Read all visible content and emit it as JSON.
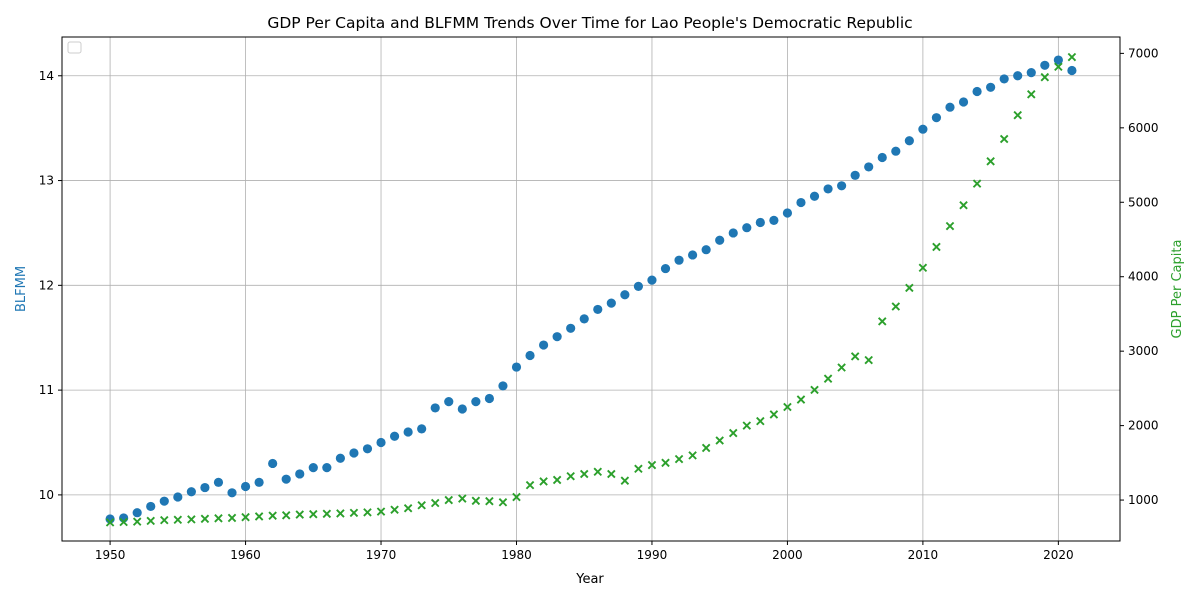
{
  "chart_data": {
    "type": "scatter",
    "title": "GDP Per Capita and BLFMM Trends Over Time for Lao People's Democratic Republic",
    "xlabel": "Year",
    "ylabel_left": "BLFMM",
    "ylabel_right": "GDP Per Capita",
    "xlim": [
      1946.45,
      2024.55
    ],
    "ylim_left": [
      9.56,
      14.37
    ],
    "ylim_right": [
      450,
      7220
    ],
    "x_ticks": [
      1950,
      1960,
      1970,
      1980,
      1990,
      2000,
      2010,
      2020
    ],
    "y_ticks_left": [
      10,
      11,
      12,
      13,
      14
    ],
    "y_ticks_right": [
      1000,
      2000,
      3000,
      4000,
      5000,
      6000,
      7000
    ],
    "grid": true,
    "legend": "top-left (empty)",
    "x": [
      1950,
      1951,
      1952,
      1953,
      1954,
      1955,
      1956,
      1957,
      1958,
      1959,
      1960,
      1961,
      1962,
      1963,
      1964,
      1965,
      1966,
      1967,
      1968,
      1969,
      1970,
      1971,
      1972,
      1973,
      1974,
      1975,
      1976,
      1977,
      1978,
      1979,
      1980,
      1981,
      1982,
      1983,
      1984,
      1985,
      1986,
      1987,
      1988,
      1989,
      1990,
      1991,
      1992,
      1993,
      1994,
      1995,
      1996,
      1997,
      1998,
      1999,
      2000,
      2001,
      2002,
      2003,
      2004,
      2005,
      2006,
      2007,
      2008,
      2009,
      2010,
      2011,
      2012,
      2013,
      2014,
      2015,
      2016,
      2017,
      2018,
      2019,
      2020,
      2021
    ],
    "series": [
      {
        "axis": "left",
        "marker": "circle",
        "color": "#1f77b4",
        "values": [
          9.77,
          9.78,
          9.83,
          9.89,
          9.94,
          9.98,
          10.03,
          10.07,
          10.12,
          10.02,
          10.08,
          10.12,
          10.3,
          10.15,
          10.2,
          10.26,
          10.26,
          10.35,
          10.4,
          10.44,
          10.5,
          10.56,
          10.6,
          10.63,
          10.83,
          10.89,
          10.82,
          10.89,
          10.92,
          11.04,
          11.22,
          11.33,
          11.43,
          11.51,
          11.59,
          11.68,
          11.77,
          11.83,
          11.91,
          11.99,
          12.05,
          12.16,
          12.24,
          12.29,
          12.34,
          12.43,
          12.5,
          12.55,
          12.6,
          12.62,
          12.69,
          12.79,
          12.85,
          12.92,
          12.95,
          13.05,
          13.13,
          13.22,
          13.28,
          13.38,
          13.49,
          13.6,
          13.7,
          13.75,
          13.85,
          13.89,
          13.97,
          14.0,
          14.03,
          14.1,
          14.15,
          14.05
        ]
      },
      {
        "axis": "right",
        "marker": "x",
        "color": "#2ca02c",
        "values": [
          700,
          705,
          710,
          720,
          730,
          735,
          740,
          748,
          755,
          760,
          770,
          780,
          790,
          795,
          805,
          810,
          815,
          820,
          828,
          835,
          845,
          870,
          890,
          930,
          960,
          1000,
          1020,
          990,
          985,
          970,
          1040,
          1200,
          1250,
          1270,
          1320,
          1350,
          1380,
          1350,
          1260,
          1420,
          1470,
          1500,
          1550,
          1600,
          1700,
          1800,
          1900,
          2000,
          2060,
          2150,
          2250,
          2350,
          2480,
          2630,
          2780,
          2930,
          2880,
          3400,
          3600,
          3850,
          4120,
          4400,
          4680,
          4960,
          5250,
          5550,
          5850,
          6170,
          6450,
          6680,
          6820,
          6950
        ]
      }
    ]
  }
}
